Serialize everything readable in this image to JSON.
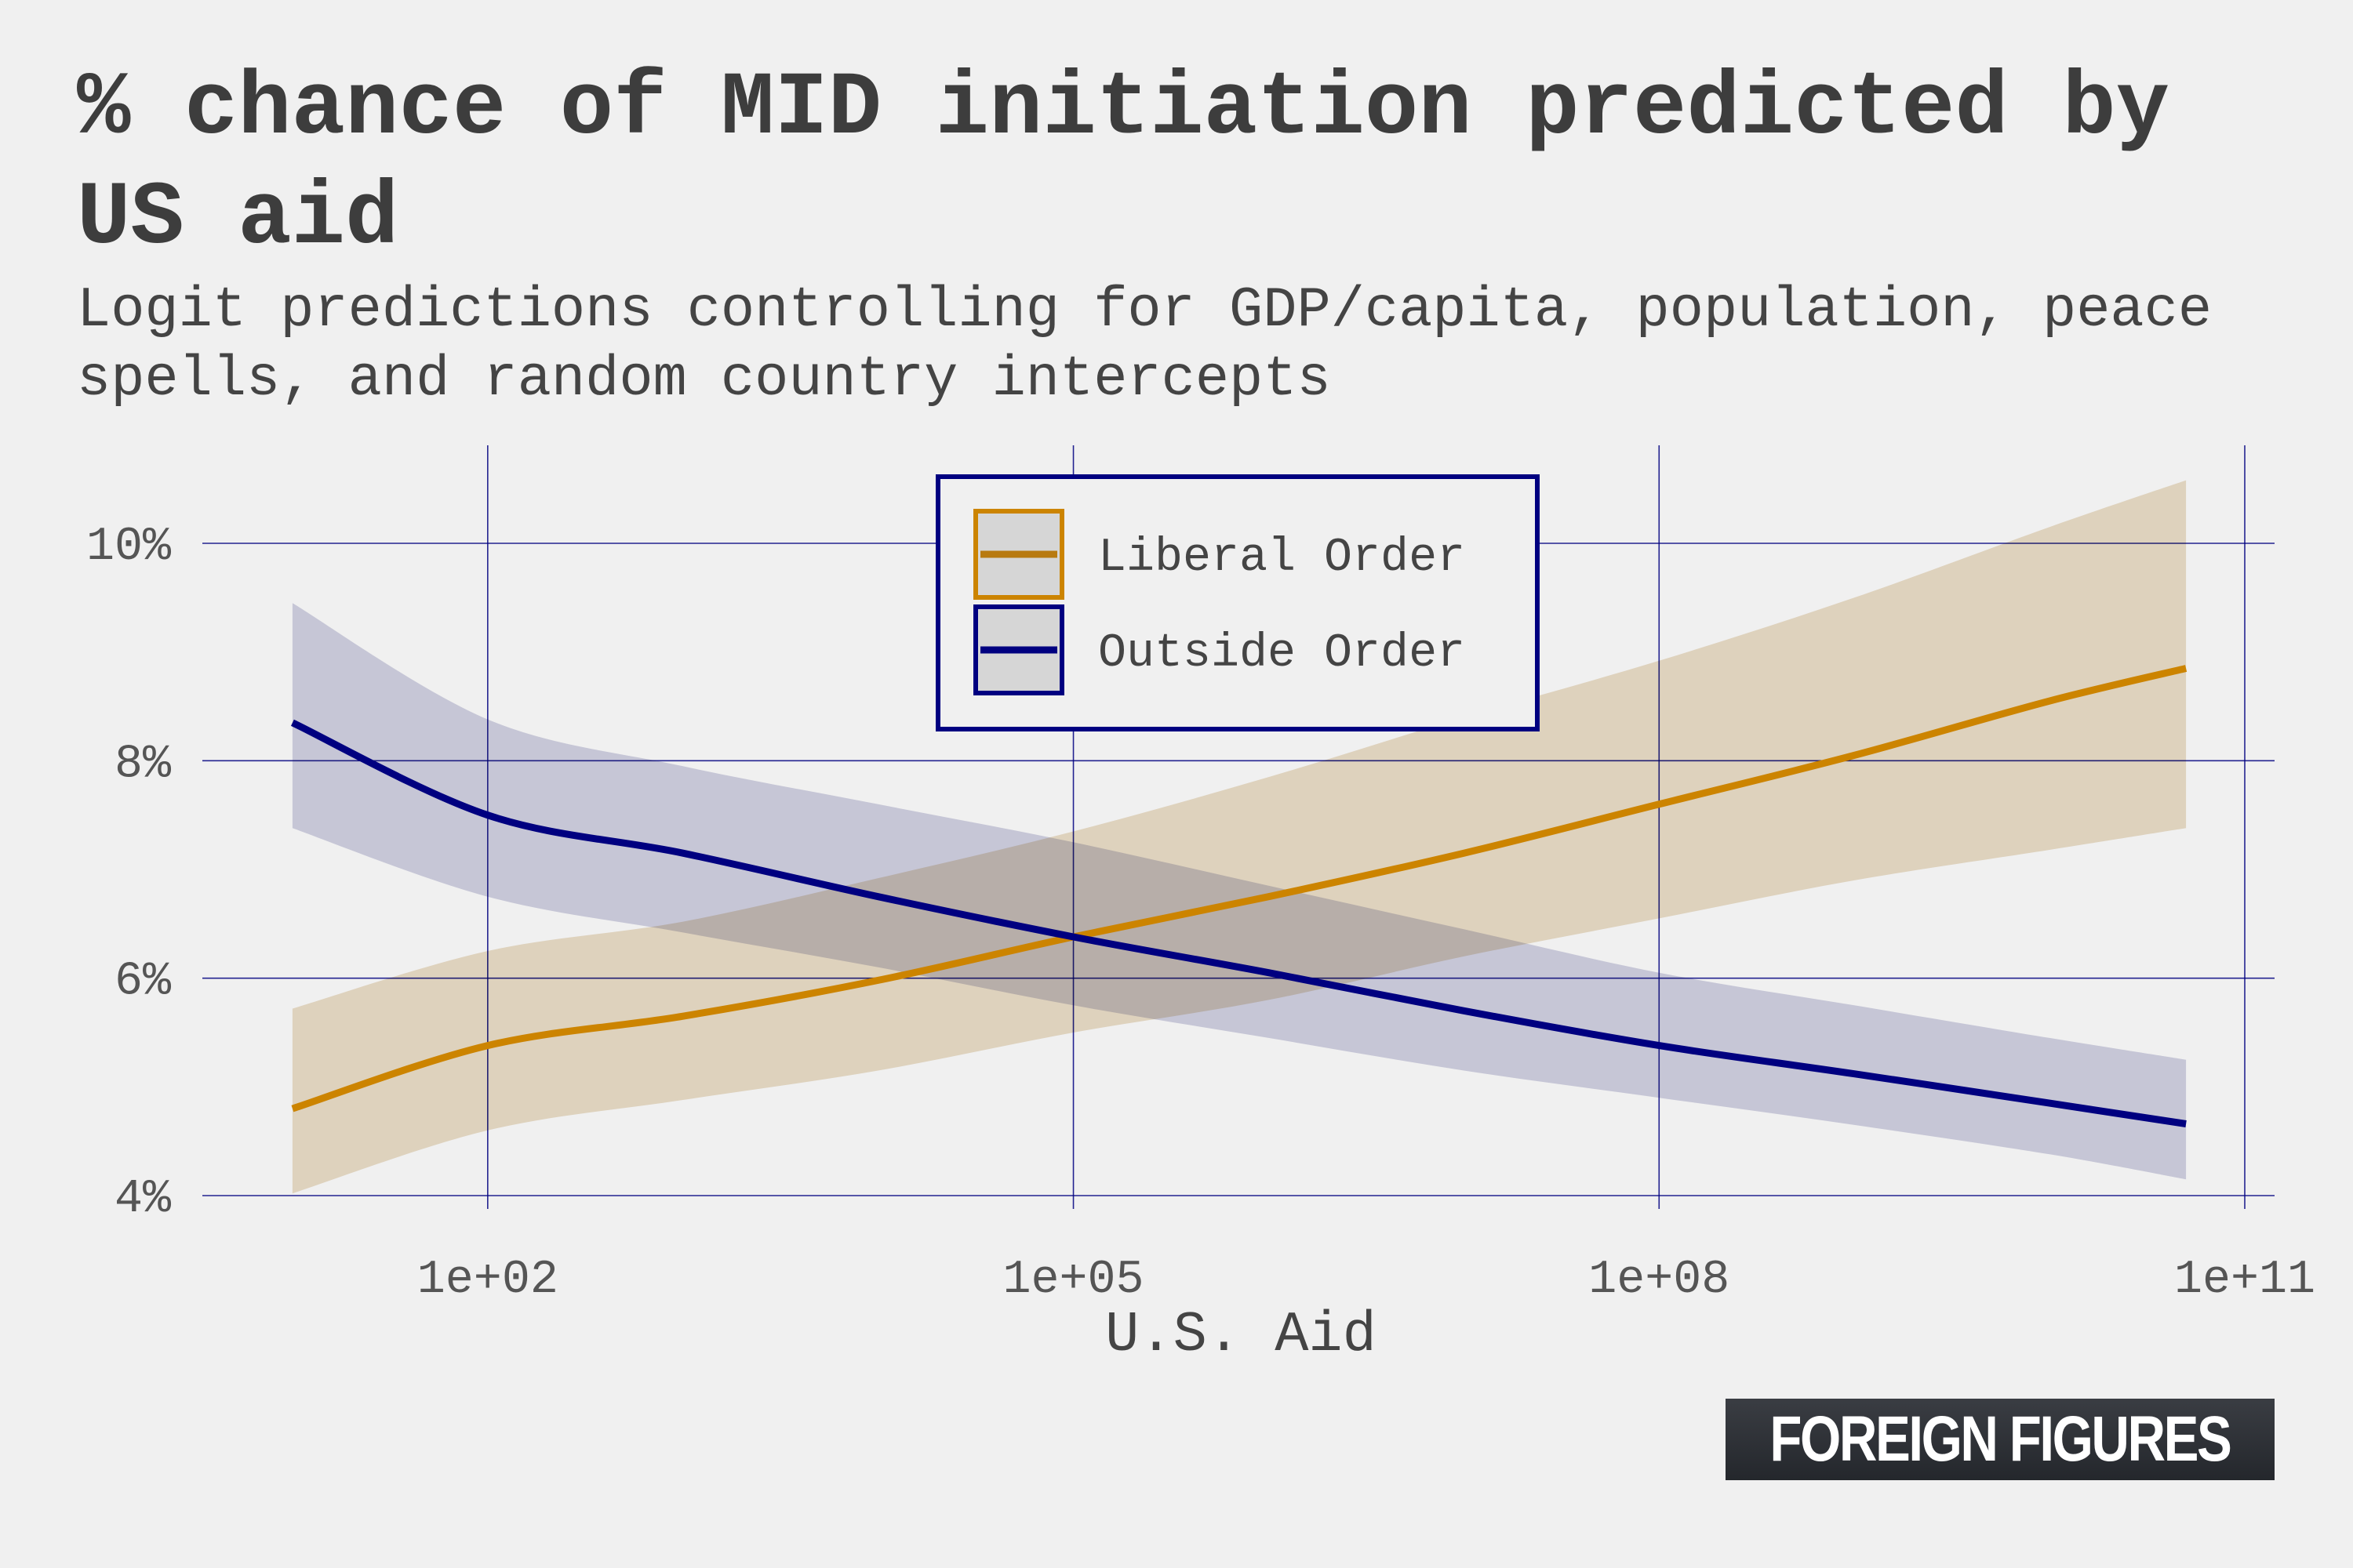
{
  "title": "% chance of MID initiation predicted by US aid",
  "subtitle": "Logit predictions controlling for GDP/capita, population, peace spells, and random country intercepts",
  "brand": "FOREIGN FIGURES",
  "colors": {
    "background": "#f0f0f0",
    "grid": "#000080",
    "liberal": "#cc8400",
    "liberal_band": "#ecdfc9",
    "outside": "#000080",
    "outside_band": "#cbcbdf"
  },
  "chart_data": {
    "type": "line",
    "xlabel": "U.S. Aid",
    "ylabel": "",
    "x_scale": "log10",
    "xlim": [
      1,
      100000000000.0
    ],
    "ylim": [
      4,
      10.5
    ],
    "x_ticks": [
      {
        "value": 100,
        "label": "1e+02"
      },
      {
        "value": 100000,
        "label": "1e+05"
      },
      {
        "value": 100000000,
        "label": "1e+08"
      },
      {
        "value": 100000000000,
        "label": "1e+11"
      }
    ],
    "y_ticks": [
      {
        "value": 4,
        "label": "4%"
      },
      {
        "value": 6,
        "label": "6%"
      },
      {
        "value": 8,
        "label": "8%"
      },
      {
        "value": 10,
        "label": "10%"
      }
    ],
    "grid": true,
    "legend_position": "top-center",
    "x": [
      10,
      100,
      1000,
      10000,
      100000,
      1000000,
      10000000,
      100000000,
      1000000000,
      10000000000,
      50000000000
    ],
    "series": [
      {
        "name": "Liberal Order",
        "values": [
          4.8,
          5.38,
          5.65,
          5.98,
          6.38,
          6.75,
          7.15,
          7.6,
          8.05,
          8.55,
          8.85
        ],
        "lower": [
          4.02,
          4.6,
          4.88,
          5.15,
          5.5,
          5.8,
          6.2,
          6.55,
          6.9,
          7.18,
          7.38
        ],
        "upper": [
          5.72,
          6.25,
          6.52,
          6.92,
          7.35,
          7.85,
          8.4,
          8.92,
          9.5,
          10.15,
          10.58
        ]
      },
      {
        "name": "Outside Order",
        "values": [
          8.35,
          7.5,
          7.15,
          6.75,
          6.38,
          6.05,
          5.7,
          5.38,
          5.12,
          4.85,
          4.66
        ],
        "lower": [
          7.38,
          6.75,
          6.42,
          6.1,
          5.75,
          5.45,
          5.15,
          4.9,
          4.65,
          4.38,
          4.15
        ],
        "upper": [
          9.45,
          8.38,
          7.95,
          7.6,
          7.25,
          6.85,
          6.45,
          6.05,
          5.75,
          5.45,
          5.25
        ]
      }
    ]
  }
}
